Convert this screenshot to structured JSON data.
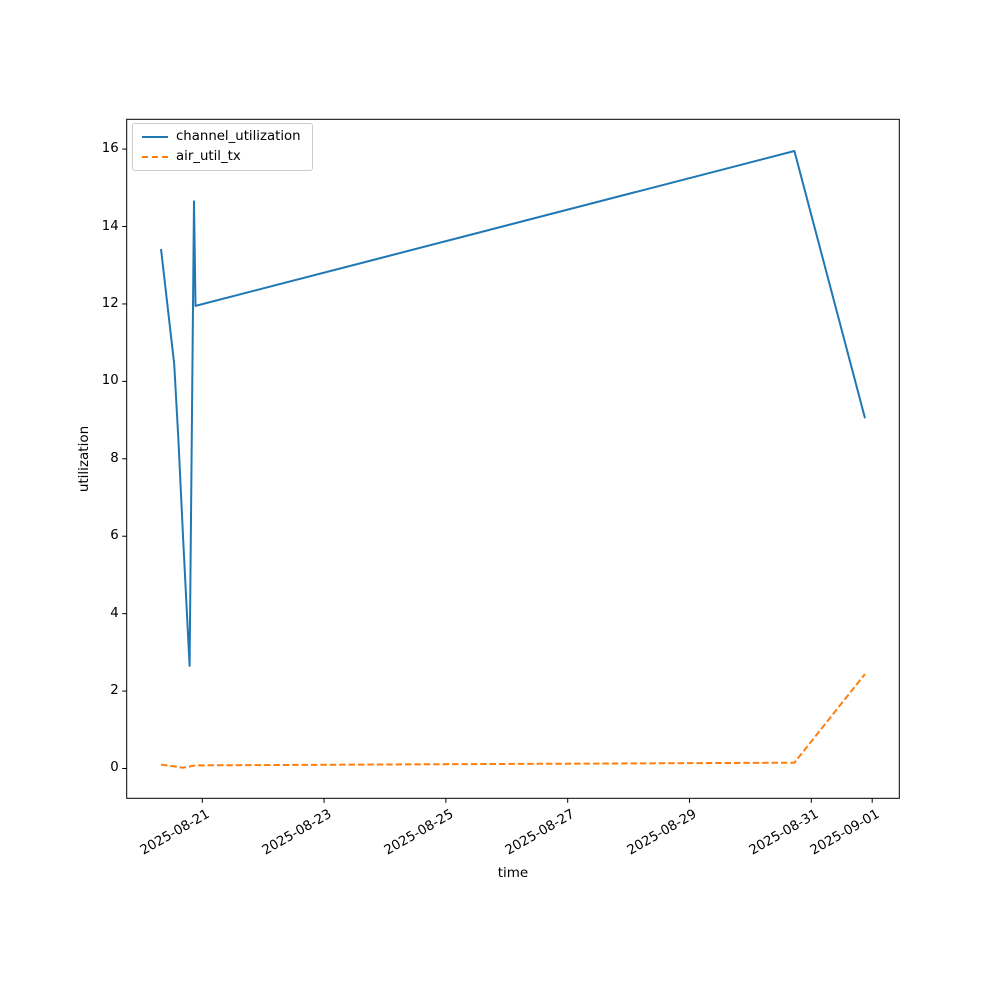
{
  "window": {
    "background": "#ffffff"
  },
  "legend": {
    "position": "upper-left",
    "items": [
      {
        "label": "channel_utilization",
        "color": "#1f77b4",
        "style": "solid"
      },
      {
        "label": "air_util_tx",
        "color": "#ff7f0e",
        "style": "dashed"
      }
    ]
  },
  "chart_data": {
    "type": "line",
    "title": "",
    "xlabel": "time",
    "ylabel": "utilization",
    "grid": false,
    "legend_position": "upper left",
    "x_axis": {
      "epoch": "2025-08-21T00:00",
      "xlim_days": [
        -1.241,
        11.445
      ],
      "tick_rotation_deg": 30,
      "ticks": [
        {
          "t": "2025-08-21T00:00",
          "label": "2025-08-21"
        },
        {
          "t": "2025-08-23T00:00",
          "label": "2025-08-23"
        },
        {
          "t": "2025-08-25T00:00",
          "label": "2025-08-25"
        },
        {
          "t": "2025-08-27T00:00",
          "label": "2025-08-27"
        },
        {
          "t": "2025-08-29T00:00",
          "label": "2025-08-29"
        },
        {
          "t": "2025-08-31T00:00",
          "label": "2025-08-31"
        },
        {
          "t": "2025-09-01T00:00",
          "label": "2025-09-01"
        }
      ]
    },
    "y_axis": {
      "ylim": [
        -0.77,
        16.77
      ],
      "ticks": [
        0,
        2,
        4,
        6,
        8,
        10,
        12,
        14,
        16
      ]
    },
    "series": [
      {
        "name": "channel_utilization",
        "color": "#1f77b4",
        "line_style": "solid",
        "line_width": 2,
        "points": [
          [
            "2025-08-20T07:45",
            13.42
          ],
          [
            "2025-08-20T12:55",
            10.45
          ],
          [
            "2025-08-20T14:35",
            8.49
          ],
          [
            "2025-08-20T16:30",
            5.9
          ],
          [
            "2025-08-20T19:00",
            2.65
          ],
          [
            "2025-08-20T20:45",
            14.65
          ],
          [
            "2025-08-20T21:20",
            11.95
          ],
          [
            "2025-08-30T17:20",
            15.95
          ],
          [
            "2025-08-31T21:10",
            9.05
          ]
        ]
      },
      {
        "name": "air_util_tx",
        "color": "#ff7f0e",
        "line_style": "dashed",
        "line_width": 2,
        "points": [
          [
            "2025-08-20T07:45",
            0.1
          ],
          [
            "2025-08-20T16:30",
            0.02
          ],
          [
            "2025-08-20T21:20",
            0.08
          ],
          [
            "2025-08-25T00:00",
            0.11
          ],
          [
            "2025-08-30T17:20",
            0.15
          ],
          [
            "2025-08-31T21:10",
            2.44
          ]
        ]
      }
    ]
  }
}
